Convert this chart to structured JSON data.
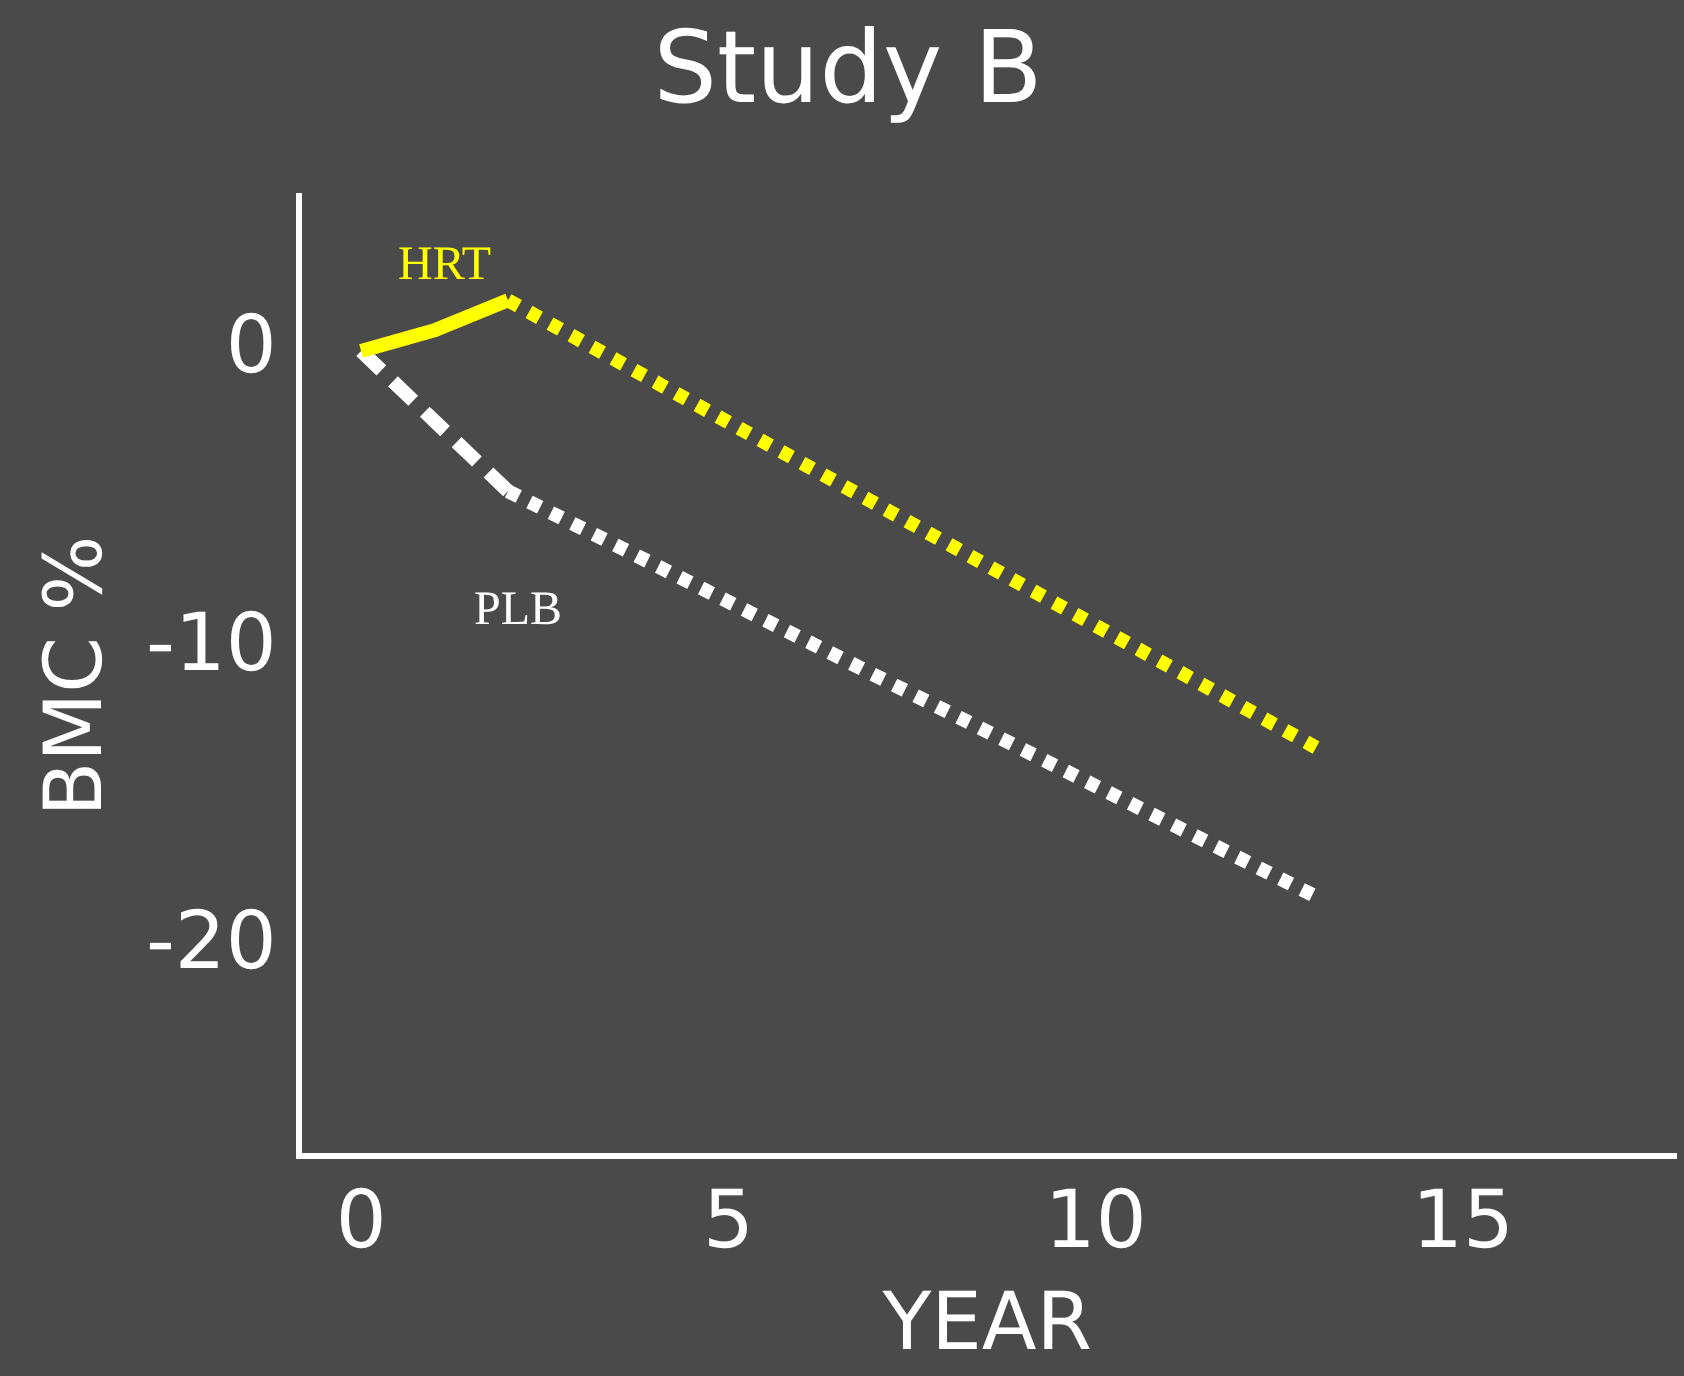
{
  "chart_data": {
    "type": "line",
    "title": "Study B",
    "xlabel": "YEAR",
    "ylabel": "BMC %",
    "xlim": [
      -0.85,
      17.9
    ],
    "xticks": [
      0,
      5,
      10,
      15
    ],
    "ylim": [
      -27,
      5.2
    ],
    "yticks": [
      0,
      -10,
      -20
    ],
    "grid": false,
    "legend": false,
    "marker": "none",
    "series": [
      {
        "name": "HRT",
        "color": "#ffff00",
        "x": [
          0,
          1,
          2,
          13
        ],
        "values": [
          0,
          0.7,
          1.7,
          -13.3
        ],
        "line_style": [
          "solid",
          "solid",
          "dotted"
        ]
      },
      {
        "name": "PLB",
        "color": "#ffffff",
        "x": [
          0,
          2,
          13
        ],
        "values": [
          0,
          -4.7,
          -18.3
        ],
        "line_style": [
          "dashed",
          "dotted"
        ]
      }
    ]
  }
}
